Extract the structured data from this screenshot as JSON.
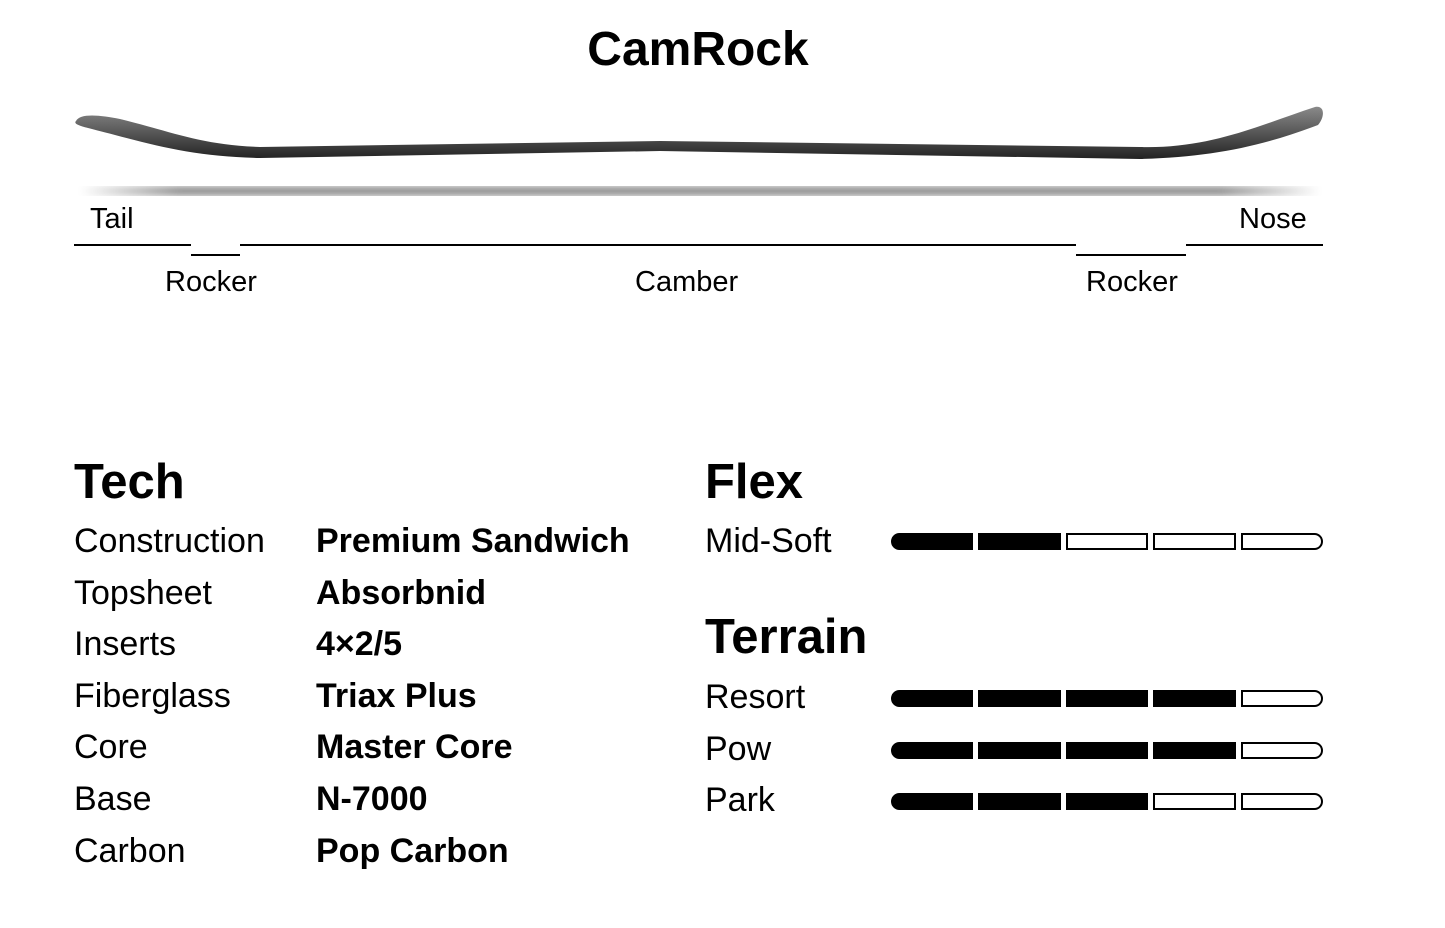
{
  "title": "CamRock",
  "profile": {
    "tail": "Tail",
    "nose": "Nose",
    "zones": [
      "Rocker",
      "Camber",
      "Rocker"
    ]
  },
  "tech": {
    "heading": "Tech",
    "rows": [
      {
        "label": "Construction",
        "value": "Premium Sandwich"
      },
      {
        "label": "Topsheet",
        "value": "Absorbnid"
      },
      {
        "label": "Inserts",
        "value": "4×2/5"
      },
      {
        "label": "Fiberglass",
        "value": "Triax Plus"
      },
      {
        "label": "Core",
        "value": "Master Core"
      },
      {
        "label": "Base",
        "value": "N-7000"
      },
      {
        "label": "Carbon",
        "value": "Pop Carbon"
      }
    ]
  },
  "flex": {
    "heading": "Flex",
    "label": "Mid-Soft",
    "level": 2,
    "max": 5
  },
  "terrain": {
    "heading": "Terrain",
    "rows": [
      {
        "label": "Resort",
        "level": 4,
        "max": 5
      },
      {
        "label": "Pow",
        "level": 4,
        "max": 5
      },
      {
        "label": "Park",
        "level": 3,
        "max": 5
      }
    ]
  }
}
